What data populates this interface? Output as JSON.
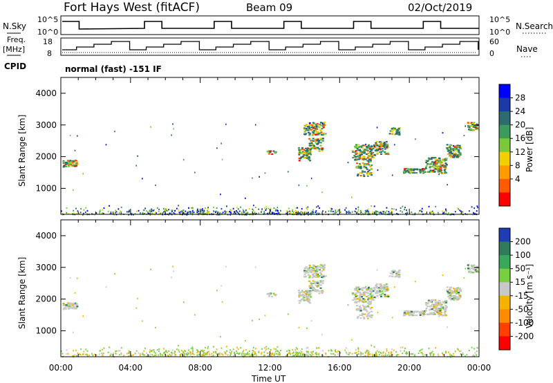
{
  "header": {
    "station": "Fort Hays West (fitACF)",
    "beam": "Beam 09",
    "date": "02/Oct/2019"
  },
  "top_panels": {
    "nsky_label": "N.Sky",
    "nsearch_label": "N.Search",
    "nsky_ticks": [
      "10^5",
      "10^0"
    ],
    "freq_label_1": "Freq.",
    "freq_label_2": "[MHz]",
    "freq_ticks": [
      "18",
      "8"
    ],
    "nave_label": "Nave",
    "nave_ticks": [
      "60",
      "0"
    ],
    "cpid_label": "CPID",
    "cpid_text": "normal (fast) -151 IF"
  },
  "colors": {
    "line": "#000000",
    "gs_gray": "#c0c0c0"
  },
  "chart_data": [
    {
      "type": "heatmap",
      "name": "power",
      "ylabel": "Slant Range [km]",
      "xlabel": "Time UT",
      "x_ticks": [
        "00:00",
        "04:00",
        "08:00",
        "12:00",
        "16:00",
        "20:00",
        "00:00"
      ],
      "y_ticks": [
        "1000",
        "2000",
        "3000",
        "4000"
      ],
      "xlim_hours": [
        0,
        24
      ],
      "ylim_km": [
        180,
        4500
      ],
      "colorbar_label": "Power [dB]",
      "colorbar_ticks": [
        "4",
        "8",
        "12",
        "16",
        "20",
        "24",
        "28"
      ],
      "colorbar_colors": [
        "#0000ff",
        "#1a3aa8",
        "#2e6b6e",
        "#3c9a5a",
        "#7dc83a",
        "#f0d000",
        "#ff9c00",
        "#ff5a00",
        "#ff0000"
      ]
    },
    {
      "type": "heatmap",
      "name": "velocity",
      "ylabel": "Slant Range [km]",
      "xlabel": "Time UT",
      "x_ticks": [
        "00:00",
        "04:00",
        "08:00",
        "12:00",
        "16:00",
        "20:00",
        "00:00"
      ],
      "y_ticks": [
        "1000",
        "2000",
        "3000",
        "4000"
      ],
      "xlim_hours": [
        0,
        24
      ],
      "ylim_km": [
        180,
        4500
      ],
      "colorbar_label": "Velocity [m s⁻¹]",
      "colorbar_ticks": [
        "200",
        "100",
        "50",
        "15",
        "-15",
        "-50",
        "-100",
        "-200"
      ],
      "colorbar_colors": [
        "#1e3cb4",
        "#2f7a5a",
        "#3aa85a",
        "#78d040",
        "#c8c8c8",
        "#f5b300",
        "#ff8c00",
        "#ff4000",
        "#ff0000"
      ]
    }
  ]
}
